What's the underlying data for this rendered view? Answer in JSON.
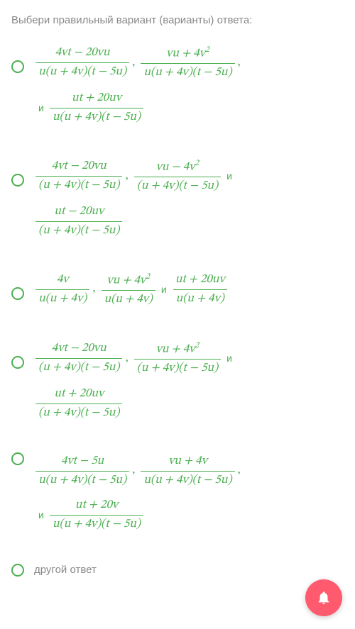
{
  "prompt": "Выбери правильный вариант (варианты) ответа:",
  "conj": "и",
  "comma": ",",
  "options": [
    {
      "fracs": [
        {
          "num": "4vt − 20vu",
          "den": "u(u + 4v)(t − 5u)"
        },
        {
          "num": "vu + 4v²",
          "den": "u(u + 4v)(t − 5u)"
        },
        {
          "num": "ut + 20uv",
          "den": "u(u + 4v)(t − 5u)"
        }
      ],
      "wrapAfter": 2
    },
    {
      "fracs": [
        {
          "num": "4vt − 20vu",
          "den": "(u + 4v)(t − 5u)"
        },
        {
          "num": "vu − 4v²",
          "den": "(u + 4v)(t − 5u)"
        },
        {
          "num": "ut − 20uv",
          "den": "(u + 4v)(t − 5u)"
        }
      ],
      "wrapAfter": 2,
      "conjInline": true
    },
    {
      "fracs": [
        {
          "num": "4v",
          "den": "u(u + 4v)"
        },
        {
          "num": "vu + 4v²",
          "den": "u(u + 4v)"
        },
        {
          "num": "ut + 20uv",
          "den": "u(u + 4v)"
        }
      ],
      "wrapAfter": 3,
      "conjInline": true
    },
    {
      "fracs": [
        {
          "num": "4vt − 20vu",
          "den": "(u + 4v)(t − 5u)"
        },
        {
          "num": "vu + 4v²",
          "den": "(u + 4v)(t − 5u)"
        },
        {
          "num": "ut + 20uv",
          "den": "(u + 4v)(t − 5u)"
        }
      ],
      "wrapAfter": 2,
      "conjInline": true
    },
    {
      "fracs": [
        {
          "num": "4vt − 5u",
          "den": "u(u + 4v)(t − 5u)"
        },
        {
          "num": "vu + 4v",
          "den": "u(u + 4v)(t − 5u)"
        },
        {
          "num": "ut + 20v",
          "den": "u(u + 4v)(t − 5u)"
        }
      ],
      "wrapAfter": 2
    }
  ],
  "otherAnswer": "другой ответ",
  "colors": {
    "accent": "#4caf50",
    "muted": "#888888",
    "fab": "#ff5a6e"
  }
}
